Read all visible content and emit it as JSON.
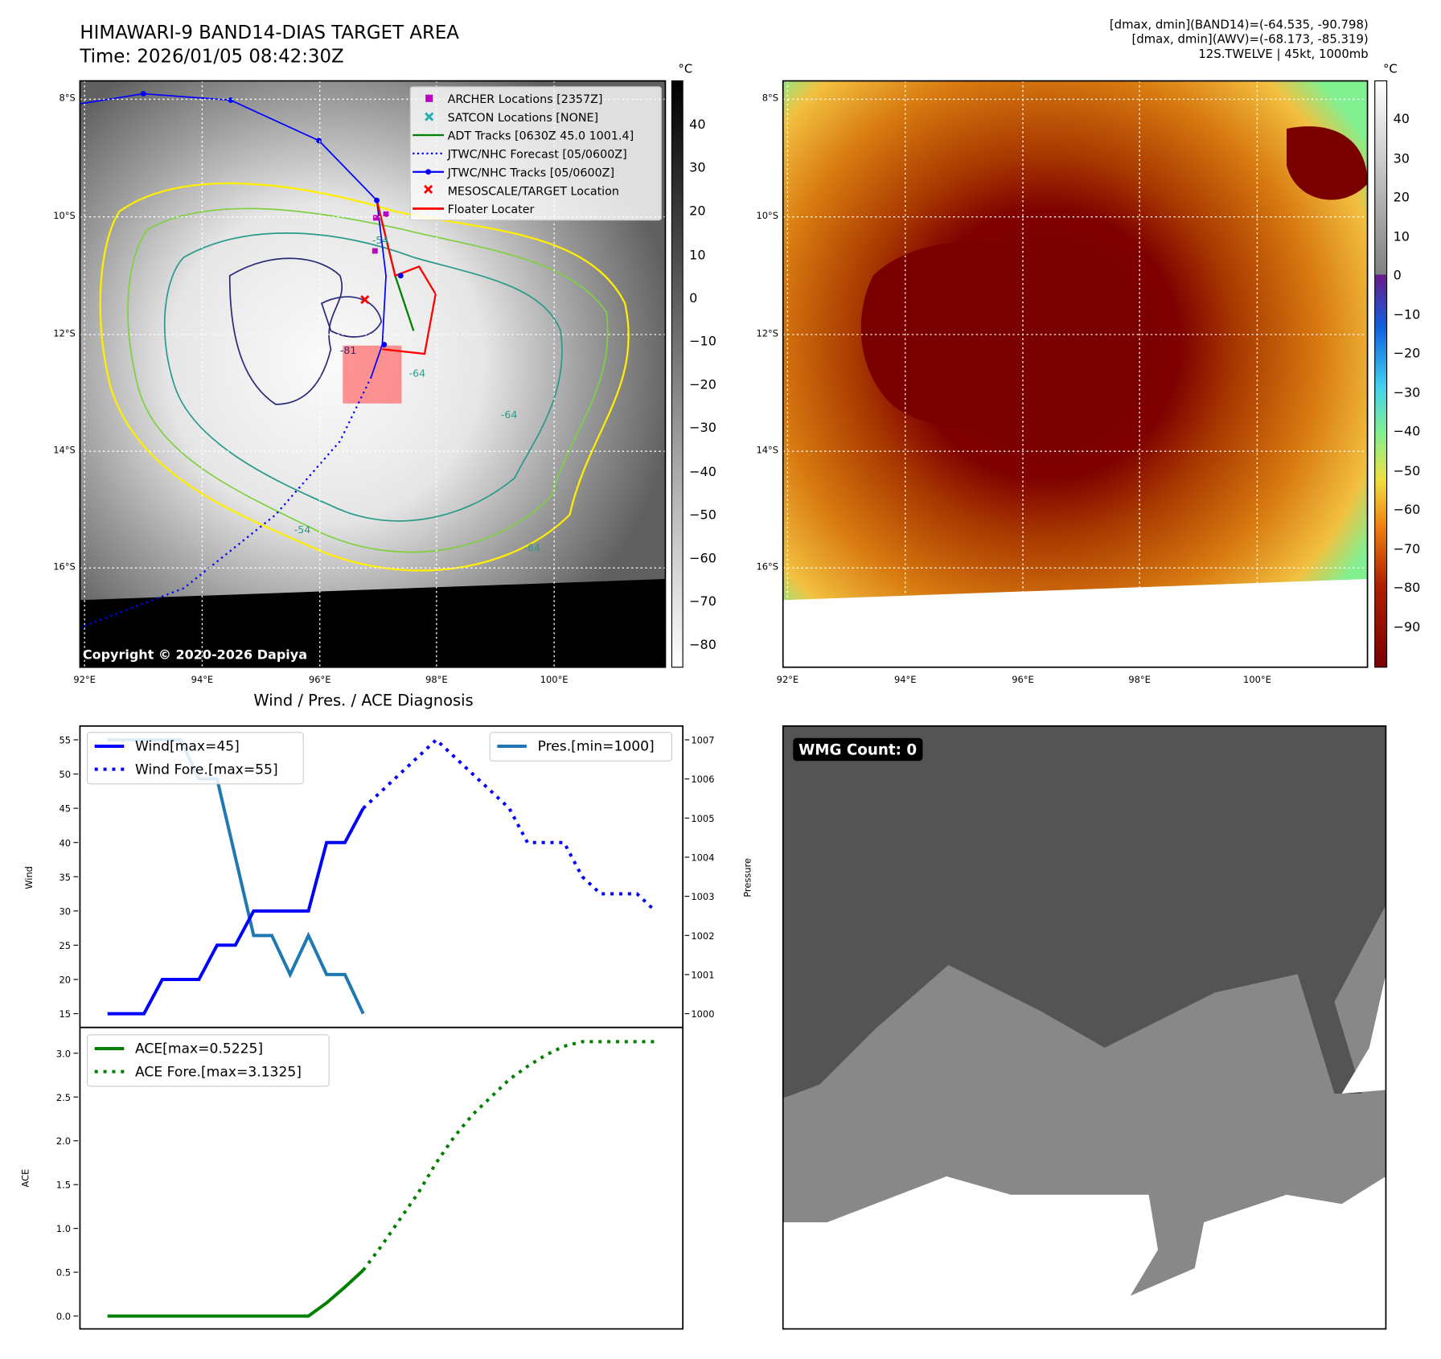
{
  "header": {
    "title": "HIMAWARI-9 BAND14-DIAS TARGET AREA",
    "time": "Time: 2026/01/05 08:42:30Z",
    "info_line1": "[dmax, dmin](BAND14)=(-64.535, -90.798)",
    "info_line2": "[dmax, dmin](AWV)=(-68.173, -85.319)",
    "info_line3": "12S.TWELVE | 45kt, 1000mb"
  },
  "map": {
    "lat_labels": [
      "8°S",
      "10°S",
      "12°S",
      "14°S",
      "16°S"
    ],
    "lon_labels": [
      "92°E",
      "94°E",
      "96°E",
      "98°E",
      "100°E"
    ],
    "copyright": "Copyright © 2020-2026 Dapiya",
    "unit": "°C",
    "colorbar1_ticks": [
      "40",
      "30",
      "20",
      "10",
      "0",
      "−10",
      "−20",
      "−30",
      "−40",
      "−50",
      "−60",
      "−70",
      "−80"
    ],
    "colorbar2_ticks": [
      "40",
      "30",
      "20",
      "10",
      "0",
      "−10",
      "−20",
      "−30",
      "−40",
      "−50",
      "−60",
      "−70",
      "−80",
      "−90"
    ],
    "legend": [
      {
        "label": "ARCHER Locations [2357Z]",
        "color": "#c000c0"
      },
      {
        "label": "SATCON Locations [NONE]",
        "color": "#20b0b0"
      },
      {
        "label": "ADT Tracks [0630Z 45.0 1001.4]",
        "color": "#008000"
      },
      {
        "label": "JTWC/NHC Forecast [05/0600Z]",
        "color": "#0000ff"
      },
      {
        "label": "JTWC/NHC Tracks [05/0600Z]",
        "color": "#0000ff"
      },
      {
        "label": "MESOSCALE/TARGET Location",
        "color": "#ff0000"
      },
      {
        "label": "Floater Locater",
        "color": "#ff0000"
      }
    ],
    "contour_labels": [
      "-81",
      "-64",
      "-54",
      "-64",
      "-54",
      "-64"
    ]
  },
  "wmg": {
    "label": "WMG Count: 0"
  },
  "chart_data": [
    {
      "type": "line",
      "title": "Wind / Pres. / ACE Diagnosis",
      "ylabel": "Wind",
      "y2label": "Pressure",
      "ylim": [
        14,
        56.5
      ],
      "y2lim": [
        999.8,
        1007.3
      ],
      "yticks": [
        "55",
        "50",
        "45",
        "40",
        "35",
        "30",
        "25",
        "20",
        "15"
      ],
      "y2ticks": [
        "1007",
        "1006",
        "1005",
        "1004",
        "1003",
        "1002",
        "1001",
        "1000"
      ],
      "legend_left": [
        "Wind[max=45]",
        "Wind Fore.[max=55]"
      ],
      "legend_right": [
        "Pres.[min=1000]"
      ],
      "series": [
        {
          "name": "Wind",
          "color": "#0000ff",
          "style": "solid",
          "start": 0,
          "values": [
            15,
            15,
            15,
            20,
            20,
            20,
            25,
            25,
            30,
            30,
            30,
            30,
            40,
            40,
            45
          ]
        },
        {
          "name": "Wind Fore.",
          "color": "#0000ff",
          "style": "dotted",
          "start": 14,
          "values": [
            45,
            47.5,
            50,
            52.5,
            55,
            52.5,
            50,
            47.5,
            45,
            40,
            40,
            40,
            35,
            32.5,
            32.5,
            32.5,
            30
          ]
        },
        {
          "name": "Pres.",
          "color": "#1f77b4",
          "style": "solid",
          "axis": "right",
          "start": 0,
          "values": [
            1007,
            1007,
            1007,
            1007,
            1007,
            1006,
            1006,
            1004,
            1002,
            1002,
            1001,
            1002,
            1001,
            1001,
            1000
          ]
        }
      ]
    },
    {
      "type": "line",
      "ylabel": "ACE",
      "ylim": [
        -0.15,
        3.3
      ],
      "yticks": [
        "0.0",
        "0.5",
        "1.0",
        "1.5",
        "2.0",
        "2.5",
        "3.0"
      ],
      "legend": [
        "ACE[max=0.5225]",
        "ACE Fore.[max=3.1325]"
      ],
      "series": [
        {
          "name": "ACE",
          "color": "#008000",
          "style": "solid",
          "start": 0,
          "values": [
            0,
            0,
            0,
            0,
            0,
            0,
            0,
            0,
            0,
            0,
            0,
            0,
            0.15,
            0.33,
            0.5225
          ]
        },
        {
          "name": "ACE Fore.",
          "color": "#008000",
          "style": "dotted",
          "start": 14,
          "values": [
            0.5225,
            0.8,
            1.1,
            1.4,
            1.75,
            2.05,
            2.3,
            2.5,
            2.7,
            2.85,
            2.98,
            3.08,
            3.1325,
            3.1325,
            3.1325,
            3.1325,
            3.1325
          ]
        }
      ]
    }
  ]
}
